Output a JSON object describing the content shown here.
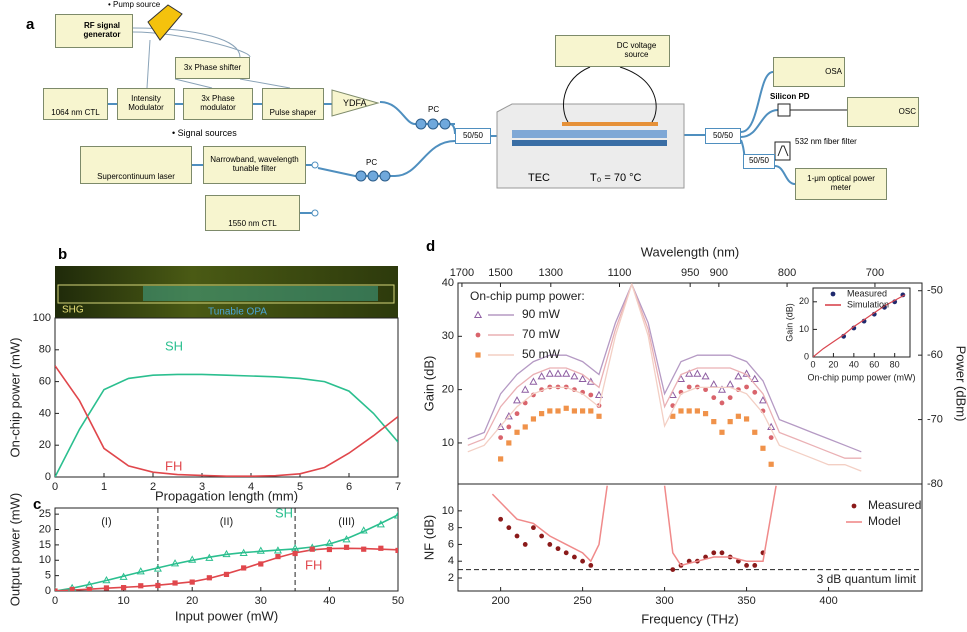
{
  "panels": [
    "a",
    "b",
    "c",
    "d"
  ],
  "diagram": {
    "pump_source": "Pump source",
    "rf_generator": "RF signal generator",
    "phase_shifter": "3x Phase shifter",
    "ctl_1064": "1064 nm CTL",
    "intensity_modulator": "Intensity Modulator",
    "phase_modulator": "3x Phase modulator",
    "pulse_shaper": "Pulse shaper",
    "ydfa": "YDFA",
    "pc_pump": "PC",
    "splitter_in": "50/50",
    "signal_sources": "Signal sources",
    "supercontinuum": "Supercontinuum laser",
    "filter": "Narrowband, wavelength tunable filter",
    "pc_signal": "PC",
    "ctl_1550": "1550 nm CTL",
    "dc_source": "DC voltage source",
    "tec": "TEC",
    "temperature": "T₀ = 70 °C",
    "splitter_out": "50/50",
    "osa": "OSA",
    "silicon_pd": "Silicon  PD",
    "osc": "OSC",
    "fiber_filter": "532 nm fiber filter",
    "splitter_meter": "50/50",
    "power_meter": "1-μm optical power meter"
  },
  "image": {
    "labels": [
      "SHG",
      "Tunable OPA"
    ]
  },
  "chart_data": [
    {
      "type": "line",
      "xlabel": "Propagation length (mm)",
      "ylabel": "On-chip power (mW)",
      "x": [
        0,
        0.5,
        1,
        1.5,
        2,
        2.5,
        3,
        3.5,
        4,
        4.5,
        5,
        5.5,
        6,
        6.5,
        7
      ],
      "xlim": [
        0,
        7
      ],
      "ylim": [
        0,
        100
      ],
      "xticks": [
        0,
        1,
        2,
        3,
        4,
        5,
        6,
        7
      ],
      "yticks": [
        0,
        20,
        40,
        60,
        80,
        100
      ],
      "series": [
        {
          "name": "SH",
          "color": "#2bbf8f",
          "values": [
            0,
            30,
            55,
            62,
            64,
            64.5,
            64.5,
            64,
            63.5,
            63,
            62,
            60,
            54,
            40,
            22
          ]
        },
        {
          "name": "FH",
          "color": "#e0474c",
          "values": [
            70,
            48,
            18,
            7,
            3,
            1.5,
            1,
            0.5,
            0.5,
            0.8,
            2,
            6,
            15,
            26,
            38
          ]
        }
      ]
    },
    {
      "type": "line",
      "xlabel": "Input power (mW)",
      "ylabel": "Output power (mW)",
      "x": [
        0,
        2.5,
        5,
        7.5,
        10,
        12.5,
        15,
        17.5,
        20,
        22.5,
        25,
        27.5,
        30,
        32.5,
        35,
        37.5,
        40,
        42.5,
        45,
        47.5,
        50
      ],
      "xlim": [
        0,
        50
      ],
      "ylim": [
        0,
        27
      ],
      "xticks": [
        0,
        10,
        20,
        30,
        40,
        50
      ],
      "yticks": [
        0,
        5,
        10,
        15,
        20,
        25
      ],
      "regions": [
        "(I)",
        "(II)",
        "(III)"
      ],
      "vlines": [
        15,
        35
      ],
      "series": [
        {
          "name": "SH",
          "color": "#2bbf8f",
          "values": [
            0,
            0.9,
            2.1,
            3.4,
            4.8,
            6.2,
            7.5,
            8.8,
            10,
            11,
            11.9,
            12.5,
            12.9,
            13.3,
            13.7,
            14.3,
            15.3,
            17,
            19.4,
            22,
            24.8
          ]
        },
        {
          "color": "#2bbf8f",
          "marker": "triangle",
          "values": [
            0,
            1,
            2,
            3.5,
            4.6,
            6.4,
            7.3,
            9,
            10.2,
            10.8,
            12,
            12.4,
            13.1,
            13.2,
            13.9,
            14.1,
            15.6,
            16.8,
            19.7,
            21.7,
            24.6
          ]
        },
        {
          "name": "FH",
          "color": "#e0474c",
          "values": [
            0,
            0.3,
            0.6,
            0.9,
            1.2,
            1.5,
            1.9,
            2.4,
            3,
            4.1,
            5.6,
            7.3,
            9.1,
            10.9,
            12.4,
            13.4,
            13.8,
            13.9,
            13.8,
            13.6,
            13.4
          ]
        },
        {
          "color": "#e0474c",
          "marker": "square",
          "values": [
            0,
            0.5,
            0.5,
            1,
            1.1,
            1.7,
            1.8,
            2.6,
            2.9,
            4.3,
            5.4,
            7.5,
            8.8,
            11.2,
            12.2,
            13.6,
            13.5,
            14.2,
            13.6,
            13.9,
            13.2
          ]
        }
      ]
    },
    {
      "type": "line",
      "ylabel": "Gain (dB)",
      "y2label": "Power (dBm)",
      "x2label": "Wavelength (nm)",
      "legend": "upper left",
      "legend_title": "On-chip pump power:",
      "x": [
        200,
        205,
        210,
        215,
        220,
        225,
        230,
        235,
        240,
        245,
        250,
        255,
        260,
        305,
        310,
        315,
        320,
        325,
        330,
        335,
        340,
        345,
        350,
        355,
        360,
        365
      ],
      "xlim": [
        174,
        457
      ],
      "ylim": [
        2.3,
        40
      ],
      "y2lim": [
        -80,
        -48.8
      ],
      "yticks": [
        10,
        20,
        30,
        40
      ],
      "y2ticks": [
        -80,
        -70,
        -60,
        -50
      ],
      "x2ticks": [
        {
          "value": 176.4,
          "label": "1700"
        },
        {
          "value": 199.9,
          "label": "1500"
        },
        {
          "value": 230.6,
          "label": "1300"
        },
        {
          "value": 272.5,
          "label": "1100"
        },
        {
          "value": 315.6,
          "label": "950"
        },
        {
          "value": 333.1,
          "label": "900"
        },
        {
          "value": 374.7,
          "label": "800"
        },
        {
          "value": 428.3,
          "label": "700"
        }
      ],
      "series": [
        {
          "name": "90 mW",
          "color": "#8e5ea2",
          "marker": "triangle",
          "values": [
            13,
            15,
            18,
            20,
            21.5,
            22.5,
            23,
            23,
            23,
            22.5,
            22,
            21.5,
            19,
            19,
            22,
            23,
            23,
            22.5,
            21,
            20,
            21,
            22.5,
            23,
            22,
            18,
            13
          ]
        },
        {
          "name": "70 mW",
          "color": "#d9646c",
          "marker": "circle",
          "values": [
            11,
            13,
            15.5,
            17.5,
            19,
            20,
            20.5,
            20.5,
            20.5,
            20,
            19.5,
            19,
            17,
            17,
            19.5,
            20.5,
            20.5,
            20,
            18.5,
            17.5,
            18.5,
            20,
            20.5,
            19.5,
            16,
            11
          ]
        },
        {
          "name": "50 mW",
          "color": "#f0924a",
          "marker": "square",
          "values": [
            7,
            10,
            12,
            13,
            14.5,
            15.5,
            16,
            16,
            16.5,
            16,
            16,
            16,
            15,
            15,
            16,
            16,
            16,
            15.5,
            14,
            12,
            14,
            15,
            14.5,
            12,
            9,
            6
          ]
        },
        {
          "color": "#b59ac4",
          "axis": "y2",
          "x": [
            180,
            190,
            200,
            210,
            220,
            230,
            240,
            250,
            260,
            270,
            280,
            290,
            300,
            310,
            320,
            330,
            340,
            350,
            360,
            370,
            380,
            390,
            400,
            410,
            420
          ],
          "values": [
            -73,
            -72,
            -66,
            -63,
            -61,
            -60,
            -60,
            -61,
            -63,
            -55,
            -49,
            -55,
            -66,
            -61,
            -60,
            -60,
            -60,
            -61,
            -64,
            -70,
            -71,
            -72,
            -73,
            -74,
            -75
          ]
        },
        {
          "color": "#eab0b4",
          "axis": "y2",
          "x": [
            180,
            190,
            200,
            210,
            220,
            230,
            240,
            250,
            260,
            270,
            280,
            290,
            300,
            310,
            320,
            330,
            340,
            350,
            360,
            370,
            380,
            390,
            400,
            410,
            420
          ],
          "values": [
            -74,
            -73,
            -68,
            -65,
            -63,
            -62,
            -62,
            -63,
            -65,
            -56,
            -49,
            -56,
            -68,
            -63,
            -62,
            -62,
            -62,
            -63,
            -66,
            -72,
            -73,
            -74,
            -75,
            -76,
            -76
          ]
        },
        {
          "color": "#f3cfc4",
          "axis": "y2",
          "x": [
            180,
            190,
            200,
            210,
            220,
            230,
            240,
            250,
            260,
            270,
            280,
            290,
            300,
            310,
            320,
            330,
            340,
            350,
            360,
            370,
            380,
            390,
            400,
            410,
            420
          ],
          "values": [
            -75,
            -74,
            -71,
            -68,
            -66,
            -65,
            -65,
            -66,
            -68,
            -57,
            -49,
            -57,
            -71,
            -66,
            -65,
            -65,
            -65,
            -66,
            -69,
            -74,
            -75,
            -76,
            -77,
            -77,
            -78
          ]
        }
      ]
    },
    {
      "type": "line",
      "xlabel": "On-chip pump power (mW)",
      "ylabel": "Gain (dB)",
      "legend": "upper left",
      "xlim": [
        0,
        95
      ],
      "ylim": [
        0,
        25
      ],
      "xticks": [
        0,
        20,
        40,
        60,
        80
      ],
      "yticks": [
        0,
        10,
        20
      ],
      "series": [
        {
          "name": "Measured",
          "color": "#1f2a6e",
          "marker": "circle",
          "x": [
            30,
            40,
            50,
            60,
            70,
            80,
            88
          ],
          "values": [
            7.5,
            10.5,
            13,
            15.5,
            18,
            20,
            22.5
          ]
        },
        {
          "name": "Simulation",
          "color": "#d9464f",
          "x": [
            0,
            10,
            20,
            30,
            40,
            50,
            60,
            70,
            80,
            90
          ],
          "values": [
            0,
            3,
            5.5,
            8,
            11,
            13.5,
            16,
            18.5,
            20.5,
            22.5
          ]
        }
      ]
    },
    {
      "type": "line",
      "xlabel": "Frequency (THz)",
      "ylabel": "NF (dB)",
      "legend": "upper right",
      "xlim": [
        174,
        457
      ],
      "ylim": [
        0.45,
        13.2
      ],
      "xticks": [
        200,
        250,
        300,
        350,
        400
      ],
      "yticks": [
        2,
        4,
        6,
        8,
        10
      ],
      "hlines": [
        3
      ],
      "hline_label": "3 dB quantum limit",
      "series": [
        {
          "name": "Measured",
          "color": "#8b1a1a",
          "marker": "circle",
          "x": [
            200,
            205,
            210,
            215,
            220,
            225,
            230,
            235,
            240,
            245,
            250,
            255,
            305,
            310,
            315,
            320,
            325,
            330,
            335,
            340,
            345,
            350,
            355,
            360
          ],
          "values": [
            9,
            8,
            7,
            6,
            8,
            7,
            6,
            5.5,
            5,
            4.5,
            4,
            3.5,
            3,
            3.5,
            4,
            4,
            4.5,
            5,
            5,
            4.5,
            4,
            3.5,
            3.5,
            5
          ]
        },
        {
          "name": "Model",
          "color": "#f08a8a",
          "x": [
            195,
            200,
            210,
            220,
            230,
            240,
            250,
            255,
            260,
            265,
            280,
            300,
            305,
            310,
            320,
            330,
            340,
            350,
            360,
            368
          ],
          "values": [
            12,
            11,
            9,
            8.5,
            7,
            6,
            5,
            4,
            6,
            13,
            null,
            13,
            5,
            3.5,
            4,
            4.5,
            4.5,
            4,
            4,
            13
          ]
        }
      ]
    }
  ]
}
